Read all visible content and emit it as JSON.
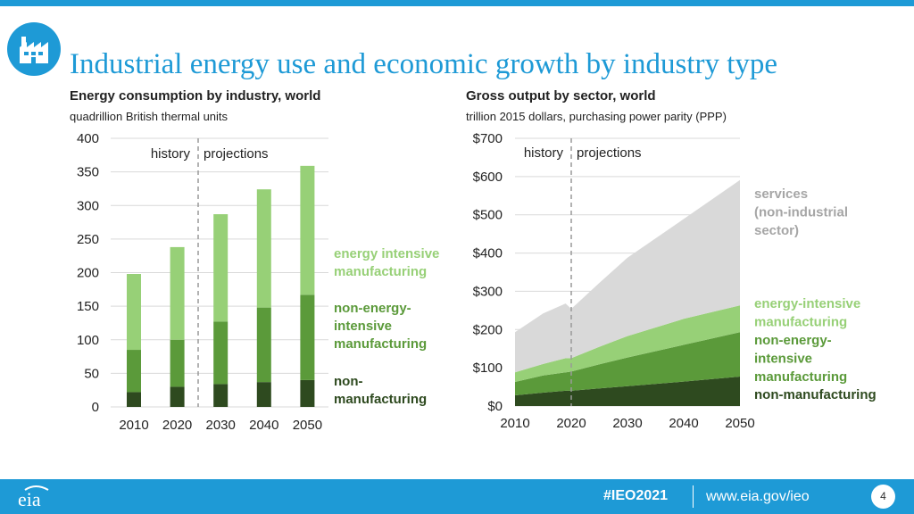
{
  "page": {
    "title": "Industrial energy use and economic growth by industry type",
    "page_number": "4",
    "footer": {
      "hashtag": "#IEO2021",
      "url": "www.eia.gov/ieo",
      "logo_text": "eia"
    },
    "logo_icon": "factory-icon"
  },
  "colors": {
    "accent": "#1e9ad6",
    "services": "#d9d9d9",
    "energy_intensive": "#97d077",
    "non_energy_intensive": "#5b9a3a",
    "non_manufacturing": "#2e4a1f",
    "services_label": "#a6a6a6",
    "energy_intensive_label": "#97d077",
    "non_energy_intensive_label": "#5b9a3a",
    "non_manufacturing_label": "#2e4a1f"
  },
  "chart_data": [
    {
      "type": "bar",
      "stacked": true,
      "title": "Energy consumption by industry, world",
      "subtitle": "quadrillion British thermal units",
      "categories": [
        "2010",
        "2020",
        "2030",
        "2040",
        "2050"
      ],
      "series": [
        {
          "name": "non-manufacturing",
          "values": [
            22,
            30,
            34,
            37,
            40
          ]
        },
        {
          "name": "non-energy-intensive manufacturing",
          "values": [
            63,
            70,
            93,
            111,
            127
          ]
        },
        {
          "name": "energy intensive manufacturing",
          "values": [
            113,
            138,
            160,
            176,
            192
          ]
        }
      ],
      "ylim": [
        0,
        400
      ],
      "yticks": [
        "0",
        "50",
        "100",
        "150",
        "200",
        "250",
        "300",
        "350",
        "400"
      ],
      "grid": true,
      "annotations": [
        "history",
        "projections"
      ],
      "legend_labels": [
        "energy intensive manufacturing",
        "non-energy-intensive manufacturing",
        "non-manufacturing"
      ]
    },
    {
      "type": "area",
      "stacked": true,
      "title": "Gross output by sector, world",
      "subtitle": "trillion 2015 dollars, purchasing power parity (PPP)",
      "x": [
        2010,
        2015,
        2019,
        2020,
        2025,
        2030,
        2040,
        2050
      ],
      "series": [
        {
          "name": "non-manufacturing",
          "values": [
            28,
            35,
            40,
            40,
            46,
            52,
            64,
            77
          ]
        },
        {
          "name": "non-energy-intensive manufacturing",
          "values": [
            35,
            45,
            48,
            50,
            63,
            75,
            96,
            116
          ]
        },
        {
          "name": "energy-intensive manufacturing",
          "values": [
            25,
            30,
            37,
            35,
            46,
            56,
            68,
            70
          ]
        },
        {
          "name": "services (non-industrial sector)",
          "values": [
            105,
            132,
            143,
            129,
            167,
            205,
            261,
            328
          ]
        }
      ],
      "xticks": [
        "2010",
        "2020",
        "2030",
        "2040",
        "2050"
      ],
      "ylim": [
        0,
        700
      ],
      "yticks": [
        "$0",
        "$100",
        "$200",
        "$300",
        "$400",
        "$500",
        "$600",
        "$700"
      ],
      "grid": true,
      "annotations": [
        "history",
        "projections"
      ],
      "legend_labels": [
        "services (non-industrial sector)",
        "energy-intensive manufacturing",
        "non-energy-intensive manufacturing",
        "non-manufacturing"
      ]
    }
  ]
}
